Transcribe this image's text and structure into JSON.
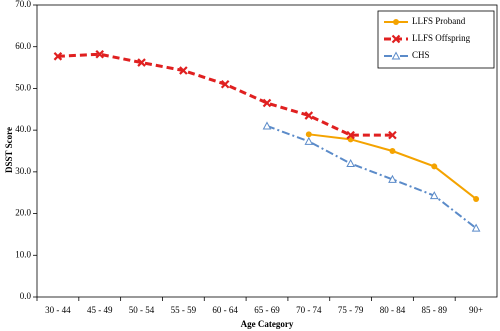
{
  "chart_data": {
    "type": "line",
    "x_label": "Age Category",
    "y_label": "DSST Score",
    "categories": [
      "30 - 44",
      "45 - 49",
      "50 - 54",
      "55 - 59",
      "60 - 64",
      "65 - 69",
      "70 - 74",
      "75 - 79",
      "80 - 84",
      "85 - 89",
      "90+"
    ],
    "ylim": [
      0,
      70
    ],
    "yticks": [
      {
        "value": 0,
        "label": "0.0"
      },
      {
        "value": 10,
        "label": "10.0"
      },
      {
        "value": 20,
        "label": "20.0"
      },
      {
        "value": 30,
        "label": "30.0"
      },
      {
        "value": 40,
        "label": "40.0"
      },
      {
        "value": 50,
        "label": "50.0"
      },
      {
        "value": 60,
        "label": "60.0"
      },
      {
        "value": 70,
        "label": "70.0"
      }
    ],
    "legend": "top-right",
    "series": [
      {
        "name": "LLFS Proband",
        "color": "#f4a300",
        "dash": "",
        "marker": "circle",
        "values": [
          null,
          null,
          null,
          null,
          null,
          null,
          39.0,
          37.8,
          35.0,
          31.3,
          23.5
        ]
      },
      {
        "name": "LLFS Offspring",
        "color": "#e02020",
        "dash": "7 4",
        "marker": "x",
        "values": [
          57.7,
          58.2,
          56.2,
          54.3,
          51.0,
          46.5,
          43.5,
          38.8,
          38.8,
          null,
          null
        ]
      },
      {
        "name": "CHS",
        "color": "#5b8bc9",
        "dash": "8 3 2 3",
        "marker": "triangle",
        "values": [
          null,
          null,
          null,
          null,
          null,
          41.0,
          37.3,
          32.0,
          28.2,
          24.3,
          16.5
        ]
      }
    ]
  }
}
